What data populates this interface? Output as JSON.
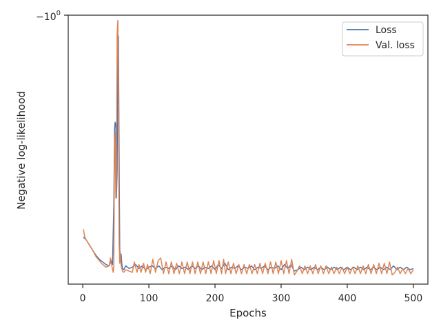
{
  "chart_data": {
    "type": "line",
    "xlabel": "Epochs",
    "ylabel": "Negative log-likelihood",
    "x_ticks": [
      0,
      100,
      200,
      300,
      400,
      500
    ],
    "xlim": [
      -22,
      522
    ],
    "y_scale": "symlog (values shown are negated log-likelihood)",
    "y_tick_base": "−10",
    "y_tick_exponent": "0",
    "legend_position": "top-right",
    "series": [
      {
        "name": "Loss",
        "color": "#4c72b0",
        "points": [
          [
            1,
            -1.85
          ],
          [
            5,
            -1.86
          ],
          [
            10,
            -1.88
          ],
          [
            15,
            -1.9
          ],
          [
            20,
            -1.92
          ],
          [
            25,
            -1.935
          ],
          [
            30,
            -1.945
          ],
          [
            35,
            -1.955
          ],
          [
            40,
            -1.96
          ],
          [
            43,
            -1.94
          ],
          [
            45,
            -1.955
          ],
          [
            47,
            -1.72
          ],
          [
            48,
            -1.44
          ],
          [
            49,
            -1.41
          ],
          [
            50,
            -1.42
          ],
          [
            51,
            -1.7
          ],
          [
            52,
            -1.6
          ],
          [
            53,
            -1.12
          ],
          [
            54,
            -1.08
          ],
          [
            55,
            -1.55
          ],
          [
            56,
            -1.9
          ],
          [
            57,
            -1.93
          ],
          [
            58,
            -1.915
          ],
          [
            59,
            -1.95
          ],
          [
            60,
            -1.97
          ],
          [
            62,
            -1.975
          ],
          [
            65,
            -1.96
          ],
          [
            70,
            -1.97
          ],
          [
            75,
            -1.965
          ],
          [
            80,
            -1.955
          ],
          [
            85,
            -1.97
          ],
          [
            90,
            -1.96
          ],
          [
            95,
            -1.975
          ],
          [
            100,
            -1.965
          ],
          [
            105,
            -1.96
          ],
          [
            110,
            -1.97
          ],
          [
            115,
            -1.96
          ],
          [
            120,
            -1.975
          ],
          [
            125,
            -1.965
          ],
          [
            130,
            -1.97
          ],
          [
            135,
            -1.96
          ],
          [
            140,
            -1.975
          ],
          [
            145,
            -1.96
          ],
          [
            150,
            -1.97
          ],
          [
            155,
            -1.965
          ],
          [
            160,
            -1.975
          ],
          [
            165,
            -1.96
          ],
          [
            170,
            -1.97
          ],
          [
            175,
            -1.96
          ],
          [
            180,
            -1.975
          ],
          [
            185,
            -1.965
          ],
          [
            190,
            -1.97
          ],
          [
            195,
            -1.96
          ],
          [
            200,
            -1.975
          ],
          [
            205,
            -1.955
          ],
          [
            210,
            -1.97
          ],
          [
            215,
            -1.95
          ],
          [
            220,
            -1.975
          ],
          [
            225,
            -1.965
          ],
          [
            230,
            -1.97
          ],
          [
            235,
            -1.96
          ],
          [
            240,
            -1.975
          ],
          [
            245,
            -1.965
          ],
          [
            250,
            -1.97
          ],
          [
            255,
            -1.96
          ],
          [
            260,
            -1.975
          ],
          [
            265,
            -1.965
          ],
          [
            270,
            -1.97
          ],
          [
            275,
            -1.96
          ],
          [
            280,
            -1.975
          ],
          [
            285,
            -1.965
          ],
          [
            290,
            -1.97
          ],
          [
            295,
            -1.96
          ],
          [
            300,
            -1.975
          ],
          [
            305,
            -1.955
          ],
          [
            310,
            -1.97
          ],
          [
            315,
            -1.955
          ],
          [
            320,
            -1.98
          ],
          [
            325,
            -1.975
          ],
          [
            330,
            -1.965
          ],
          [
            335,
            -1.975
          ],
          [
            340,
            -1.965
          ],
          [
            345,
            -1.975
          ],
          [
            350,
            -1.965
          ],
          [
            355,
            -1.975
          ],
          [
            360,
            -1.965
          ],
          [
            365,
            -1.975
          ],
          [
            370,
            -1.965
          ],
          [
            375,
            -1.975
          ],
          [
            380,
            -1.965
          ],
          [
            385,
            -1.975
          ],
          [
            390,
            -1.965
          ],
          [
            395,
            -1.975
          ],
          [
            400,
            -1.965
          ],
          [
            405,
            -1.975
          ],
          [
            410,
            -1.965
          ],
          [
            415,
            -1.975
          ],
          [
            420,
            -1.965
          ],
          [
            425,
            -1.975
          ],
          [
            430,
            -1.965
          ],
          [
            435,
            -1.975
          ],
          [
            440,
            -1.965
          ],
          [
            445,
            -1.975
          ],
          [
            450,
            -1.965
          ],
          [
            455,
            -1.975
          ],
          [
            460,
            -1.965
          ],
          [
            465,
            -1.975
          ],
          [
            470,
            -1.96
          ],
          [
            475,
            -1.975
          ],
          [
            480,
            -1.965
          ],
          [
            485,
            -1.975
          ],
          [
            490,
            -1.965
          ],
          [
            495,
            -1.975
          ],
          [
            500,
            -1.97
          ]
        ]
      },
      {
        "name": "Val. loss",
        "color": "#dd8452",
        "points": [
          [
            1,
            -1.82
          ],
          [
            3,
            -1.85
          ],
          [
            5,
            -1.86
          ],
          [
            10,
            -1.88
          ],
          [
            15,
            -1.9
          ],
          [
            20,
            -1.925
          ],
          [
            25,
            -1.94
          ],
          [
            30,
            -1.955
          ],
          [
            35,
            -1.965
          ],
          [
            40,
            -1.96
          ],
          [
            42,
            -1.93
          ],
          [
            44,
            -1.96
          ],
          [
            46,
            -1.985
          ],
          [
            47,
            -1.96
          ],
          [
            48,
            -1.5
          ],
          [
            49,
            -1.45
          ],
          [
            50,
            -1.7
          ],
          [
            51,
            -1.6
          ],
          [
            52,
            -1.07
          ],
          [
            53,
            -1.02
          ],
          [
            54,
            -1.35
          ],
          [
            55,
            -1.88
          ],
          [
            56,
            -1.95
          ],
          [
            57,
            -1.915
          ],
          [
            58,
            -1.96
          ],
          [
            60,
            -1.98
          ],
          [
            62,
            -1.985
          ],
          [
            65,
            -1.975
          ],
          [
            70,
            -1.98
          ],
          [
            75,
            -1.985
          ],
          [
            78,
            -1.945
          ],
          [
            82,
            -1.985
          ],
          [
            85,
            -1.955
          ],
          [
            88,
            -1.985
          ],
          [
            92,
            -1.95
          ],
          [
            95,
            -1.985
          ],
          [
            98,
            -1.955
          ],
          [
            102,
            -1.99
          ],
          [
            106,
            -1.935
          ],
          [
            110,
            -1.985
          ],
          [
            114,
            -1.94
          ],
          [
            118,
            -1.93
          ],
          [
            122,
            -1.99
          ],
          [
            126,
            -1.945
          ],
          [
            130,
            -1.99
          ],
          [
            134,
            -1.945
          ],
          [
            138,
            -1.99
          ],
          [
            142,
            -1.95
          ],
          [
            146,
            -1.99
          ],
          [
            150,
            -1.945
          ],
          [
            154,
            -1.99
          ],
          [
            158,
            -1.945
          ],
          [
            162,
            -1.99
          ],
          [
            166,
            -1.945
          ],
          [
            170,
            -1.99
          ],
          [
            174,
            -1.945
          ],
          [
            178,
            -1.99
          ],
          [
            182,
            -1.945
          ],
          [
            186,
            -1.99
          ],
          [
            190,
            -1.945
          ],
          [
            194,
            -1.99
          ],
          [
            198,
            -1.94
          ],
          [
            202,
            -1.99
          ],
          [
            206,
            -1.94
          ],
          [
            210,
            -1.99
          ],
          [
            213,
            -1.935
          ],
          [
            216,
            -1.99
          ],
          [
            220,
            -1.945
          ],
          [
            224,
            -1.99
          ],
          [
            228,
            -1.95
          ],
          [
            232,
            -1.99
          ],
          [
            236,
            -1.955
          ],
          [
            240,
            -1.99
          ],
          [
            244,
            -1.955
          ],
          [
            248,
            -1.99
          ],
          [
            252,
            -1.955
          ],
          [
            256,
            -1.99
          ],
          [
            260,
            -1.955
          ],
          [
            264,
            -1.99
          ],
          [
            268,
            -1.95
          ],
          [
            272,
            -1.99
          ],
          [
            276,
            -1.95
          ],
          [
            280,
            -1.99
          ],
          [
            284,
            -1.945
          ],
          [
            288,
            -1.99
          ],
          [
            292,
            -1.945
          ],
          [
            296,
            -1.99
          ],
          [
            300,
            -1.94
          ],
          [
            304,
            -1.99
          ],
          [
            308,
            -1.94
          ],
          [
            312,
            -1.99
          ],
          [
            316,
            -1.935
          ],
          [
            320,
            -1.995
          ],
          [
            324,
            -1.98
          ],
          [
            328,
            -1.96
          ],
          [
            332,
            -1.99
          ],
          [
            336,
            -1.96
          ],
          [
            340,
            -1.99
          ],
          [
            344,
            -1.96
          ],
          [
            348,
            -1.99
          ],
          [
            352,
            -1.955
          ],
          [
            356,
            -1.99
          ],
          [
            360,
            -1.96
          ],
          [
            364,
            -1.99
          ],
          [
            368,
            -1.96
          ],
          [
            372,
            -1.99
          ],
          [
            376,
            -1.965
          ],
          [
            380,
            -1.99
          ],
          [
            384,
            -1.965
          ],
          [
            388,
            -1.99
          ],
          [
            392,
            -1.965
          ],
          [
            396,
            -1.99
          ],
          [
            400,
            -1.965
          ],
          [
            404,
            -1.99
          ],
          [
            408,
            -1.965
          ],
          [
            412,
            -1.99
          ],
          [
            416,
            -1.96
          ],
          [
            420,
            -1.99
          ],
          [
            424,
            -1.96
          ],
          [
            428,
            -1.99
          ],
          [
            432,
            -1.955
          ],
          [
            436,
            -1.99
          ],
          [
            440,
            -1.955
          ],
          [
            444,
            -1.99
          ],
          [
            448,
            -1.95
          ],
          [
            452,
            -1.99
          ],
          [
            456,
            -1.95
          ],
          [
            460,
            -1.99
          ],
          [
            464,
            -1.945
          ],
          [
            468,
            -1.995
          ],
          [
            472,
            -1.985
          ],
          [
            476,
            -1.965
          ],
          [
            480,
            -1.99
          ],
          [
            484,
            -1.97
          ],
          [
            488,
            -1.99
          ],
          [
            492,
            -1.97
          ],
          [
            496,
            -1.99
          ],
          [
            500,
            -1.975
          ]
        ]
      }
    ],
    "ylim": [
      -2.03,
      -1.0
    ]
  }
}
